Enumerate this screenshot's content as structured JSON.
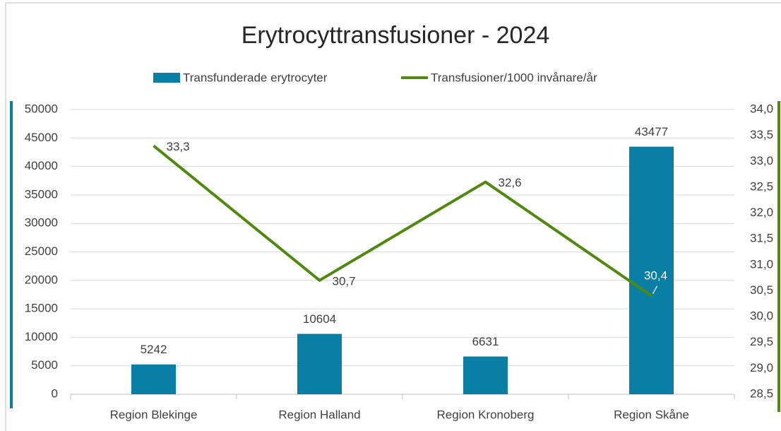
{
  "chart_data": {
    "type": "bar_line",
    "title": "Erytrocyttransfusioner - 2024",
    "categories": [
      "Region Blekinge",
      "Region Halland",
      "Region Kronoberg",
      "Region Skåne"
    ],
    "series": [
      {
        "name": "Transfunderade erytrocyter",
        "type": "bar",
        "color": "#0a7fa6",
        "values": [
          5242,
          10604,
          6631,
          43477
        ]
      },
      {
        "name": "Transfusioner/1000 invånare/år",
        "type": "line",
        "axis": "y2",
        "color": "#4e8a0e",
        "values": [
          33.3,
          30.7,
          32.6,
          30.4
        ],
        "value_labels": [
          "33,3",
          "30,7",
          "32,6",
          "30,4"
        ]
      }
    ],
    "ylim": [
      0,
      50000
    ],
    "yticks": [
      0,
      5000,
      10000,
      15000,
      20000,
      25000,
      30000,
      35000,
      40000,
      45000,
      50000
    ],
    "y2lim": [
      28.5,
      34
    ],
    "y2ticks": [
      {
        "value": 28.5,
        "label": "28,5"
      },
      {
        "value": 29,
        "label": "29,0"
      },
      {
        "value": 29.5,
        "label": "29,5"
      },
      {
        "value": 30,
        "label": "30,0"
      },
      {
        "value": 30.5,
        "label": "30,5"
      },
      {
        "value": 31,
        "label": "31,0"
      },
      {
        "value": 31.5,
        "label": "31,5"
      },
      {
        "value": 32,
        "label": "32,0"
      },
      {
        "value": 32.5,
        "label": "32,5"
      },
      {
        "value": 33,
        "label": "33,0"
      },
      {
        "value": 33.5,
        "label": "33,5"
      },
      {
        "value": 34,
        "label": "34,0"
      }
    ],
    "grid": true,
    "legend": "top"
  }
}
